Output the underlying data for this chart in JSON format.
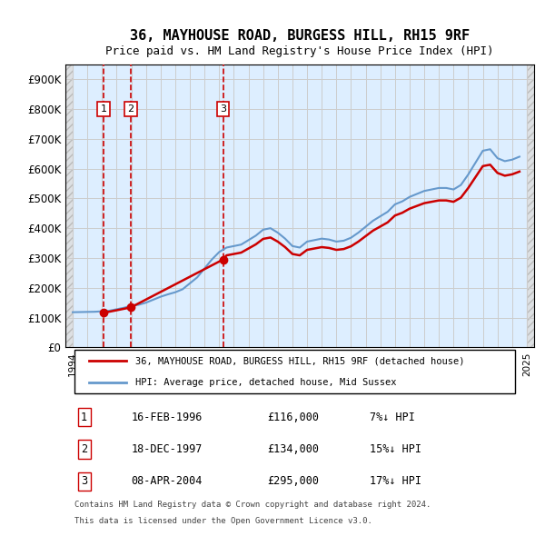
{
  "title": "36, MAYHOUSE ROAD, BURGESS HILL, RH15 9RF",
  "subtitle": "Price paid vs. HM Land Registry's House Price Index (HPI)",
  "legend_line1": "36, MAYHOUSE ROAD, BURGESS HILL, RH15 9RF (detached house)",
  "legend_line2": "HPI: Average price, detached house, Mid Sussex",
  "footer1": "Contains HM Land Registry data © Crown copyright and database right 2024.",
  "footer2": "This data is licensed under the Open Government Licence v3.0.",
  "transactions": [
    {
      "num": 1,
      "date": "16-FEB-1996",
      "price": 116000,
      "pct": "7%↓ HPI",
      "year": 1996.12
    },
    {
      "num": 2,
      "date": "18-DEC-1997",
      "price": 134000,
      "pct": "15%↓ HPI",
      "year": 1997.96
    },
    {
      "num": 3,
      "date": "08-APR-2004",
      "price": 295000,
      "pct": "17%↓ HPI",
      "year": 2004.27
    }
  ],
  "price_color": "#cc0000",
  "hpi_color": "#6699cc",
  "vline_color": "#cc0000",
  "dot_color": "#cc0000",
  "hatch_color": "#cccccc",
  "grid_color": "#cccccc",
  "bg_color": "#ddeeff",
  "hatch_bg": "#e8e8e8",
  "ylim": [
    0,
    950000
  ],
  "yticks": [
    0,
    100000,
    200000,
    300000,
    400000,
    500000,
    600000,
    700000,
    800000,
    900000
  ],
  "ytick_labels": [
    "£0",
    "£100K",
    "£200K",
    "£300K",
    "£400K",
    "£500K",
    "£600K",
    "£700K",
    "£800K",
    "£900K"
  ],
  "xlim": [
    1993.5,
    2025.5
  ],
  "xticks": [
    1994,
    1995,
    1996,
    1997,
    1998,
    1999,
    2000,
    2001,
    2002,
    2003,
    2004,
    2005,
    2006,
    2007,
    2008,
    2009,
    2010,
    2011,
    2012,
    2013,
    2014,
    2015,
    2016,
    2017,
    2018,
    2019,
    2020,
    2021,
    2022,
    2023,
    2024,
    2025
  ]
}
